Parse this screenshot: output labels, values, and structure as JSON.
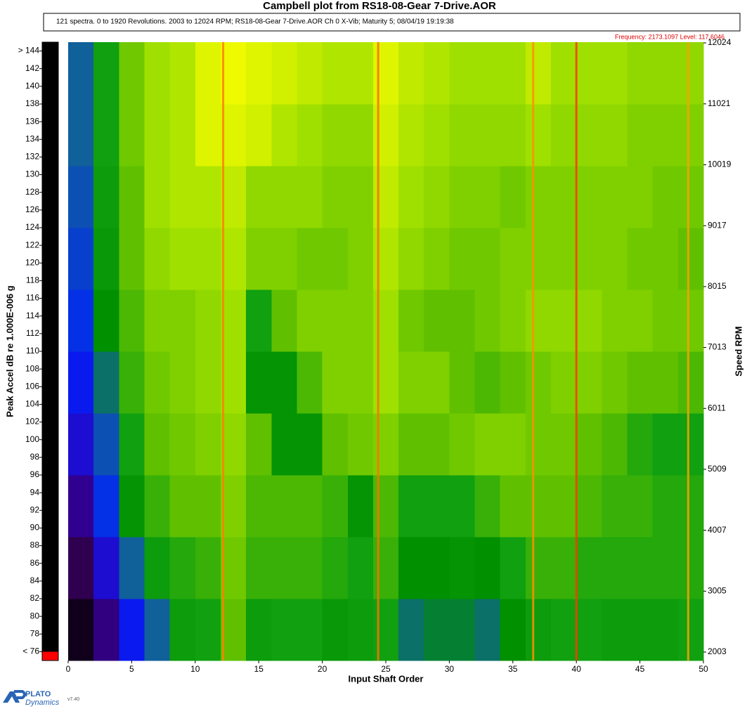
{
  "chart_data": {
    "type": "heatmap",
    "title": "Campbell plot from RS18-08-Gear 7-Drive.AOR",
    "subtitle": "121 spectra. 0 to 1920 Revolutions. 2003 to 12024 RPM; RS18-08-Gear 7-Drive.AOR Ch 0 X-Vib; Maturity 5; 08/04/19 19:19:38",
    "cursor_info": "Frequency: 2173.1097  Level: 117.6046",
    "x_label": "Input Shaft Order",
    "y_label": "Speed RPM",
    "colorbar_label": "Peak Accel dB re 1.000E-006 g",
    "xlim": [
      0,
      50
    ],
    "xticks": [
      0,
      5,
      10,
      15,
      20,
      25,
      30,
      35,
      40,
      45,
      50
    ],
    "ylim": [
      1864,
      12036
    ],
    "yticks": [
      2003,
      3005,
      4007,
      5009,
      6011,
      7013,
      8015,
      9017,
      10019,
      11021,
      12024
    ],
    "clim": [
      75,
      145
    ],
    "cticks": [
      {
        "value": 76,
        "label": "< 76"
      },
      78,
      80,
      82,
      84,
      86,
      88,
      90,
      92,
      94,
      96,
      98,
      100,
      102,
      104,
      106,
      108,
      110,
      112,
      114,
      116,
      118,
      120,
      122,
      124,
      126,
      128,
      130,
      132,
      134,
      136,
      138,
      140,
      142,
      {
        "value": 144,
        "label": "> 144"
      }
    ],
    "colorscale": [
      [
        76,
        "#000000"
      ],
      [
        82,
        "#300050"
      ],
      [
        88,
        "#3000b0"
      ],
      [
        93,
        "#0020ff"
      ],
      [
        97,
        "#10609a"
      ],
      [
        100,
        "#009000"
      ],
      [
        104,
        "#10a010"
      ],
      [
        108,
        "#60c000"
      ],
      [
        112,
        "#a0e000"
      ],
      [
        118,
        "#ffff00"
      ],
      [
        126,
        "#ffa000"
      ],
      [
        134,
        "#ff6000"
      ],
      [
        144,
        "#ff0000"
      ]
    ],
    "x_bins": [
      0,
      2,
      4,
      6,
      8,
      10,
      12,
      14,
      16,
      18,
      20,
      22,
      24,
      26,
      28,
      30,
      32,
      34,
      36,
      38,
      40,
      42,
      44,
      46,
      48,
      50
    ],
    "y_bins": [
      1864,
      2881,
      3898,
      4916,
      5933,
      6950,
      7967,
      8984,
      10002,
      11019,
      12036
    ],
    "z": [
      [
        78,
        85,
        92,
        97,
        103,
        104,
        108,
        103,
        104,
        104,
        102,
        103,
        104,
        98,
        99,
        99,
        98,
        100,
        103,
        104,
        104,
        103,
        103,
        103,
        104
      ],
      [
        82,
        90,
        97,
        103,
        105,
        106,
        109,
        106,
        106,
        106,
        105,
        104,
        106,
        100,
        100,
        101,
        100,
        104,
        106,
        106,
        105,
        105,
        105,
        105,
        105
      ],
      [
        86,
        94,
        101,
        106,
        108,
        108,
        110,
        107,
        107,
        107,
        106,
        101,
        107,
        104,
        104,
        104,
        106,
        108,
        108,
        108,
        107,
        106,
        106,
        105,
        105
      ],
      [
        90,
        96,
        104,
        108,
        109,
        110,
        111,
        108,
        101,
        101,
        108,
        109,
        110,
        108,
        108,
        109,
        110,
        110,
        109,
        109,
        108,
        107,
        105,
        104,
        104
      ],
      [
        92,
        98,
        106,
        109,
        110,
        111,
        112,
        101,
        101,
        107,
        110,
        110,
        112,
        110,
        110,
        108,
        107,
        108,
        109,
        110,
        110,
        109,
        108,
        108,
        107
      ],
      [
        94,
        100,
        107,
        110,
        110,
        111,
        112,
        104,
        108,
        110,
        110,
        110,
        112,
        109,
        108,
        108,
        109,
        110,
        111,
        111,
        111,
        110,
        110,
        109,
        109
      ],
      [
        95,
        102,
        108,
        111,
        112,
        112,
        113,
        110,
        110,
        109,
        109,
        110,
        113,
        111,
        110,
        109,
        109,
        110,
        110,
        110,
        110,
        110,
        109,
        109,
        108
      ],
      [
        96,
        103,
        108,
        112,
        113,
        113,
        114,
        111,
        111,
        111,
        110,
        110,
        114,
        112,
        111,
        110,
        110,
        109,
        110,
        110,
        110,
        110,
        110,
        109,
        109
      ],
      [
        97,
        104,
        109,
        112,
        113,
        116,
        116,
        115,
        113,
        112,
        111,
        111,
        115,
        113,
        112,
        111,
        111,
        111,
        112,
        111,
        111,
        111,
        110,
        110,
        110
      ],
      [
        97,
        104,
        109,
        112,
        113,
        116,
        117,
        116,
        115,
        114,
        113,
        113,
        116,
        114,
        113,
        112,
        112,
        112,
        114,
        112,
        112,
        112,
        111,
        111,
        111
      ]
    ],
    "peaks": {
      "orders": [
        12.2,
        24.4,
        36.6,
        40,
        48.8
      ],
      "levels": [
        130,
        132,
        128,
        138,
        126
      ]
    },
    "logo": {
      "name": "PLATO",
      "tagline": "Dynamics",
      "version": "v7.40"
    }
  }
}
